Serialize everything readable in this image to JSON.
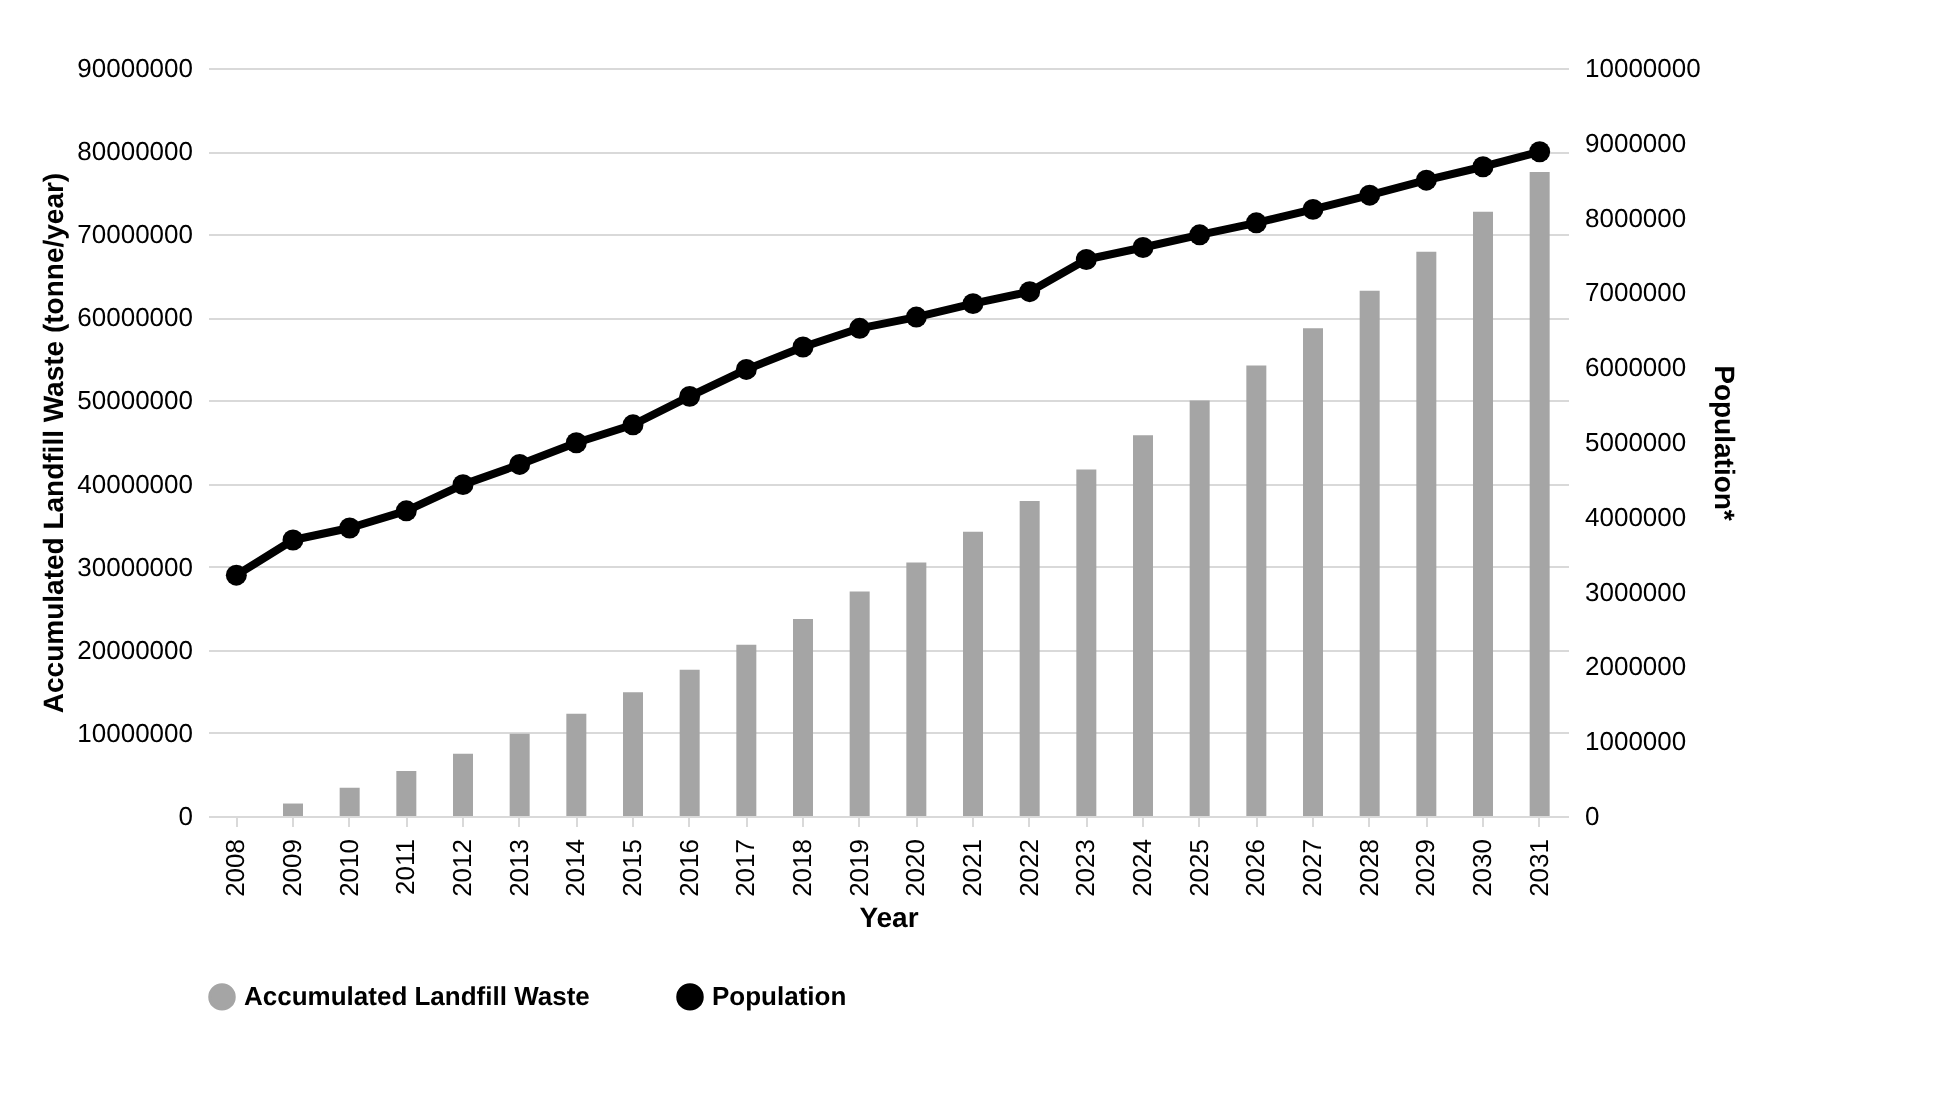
{
  "chart_data": {
    "type": "bar",
    "xlabel": "Year",
    "ylabel": "Accumulated Landfill Waste (tonne/year)",
    "y2label": "Population*",
    "categories": [
      "2008",
      "2009",
      "2010",
      "2011",
      "2012",
      "2013",
      "2014",
      "2015",
      "2016",
      "2017",
      "2018",
      "2019",
      "2020",
      "2021",
      "2022",
      "2023",
      "2024",
      "2025",
      "2026",
      "2027",
      "2028",
      "2029",
      "2030",
      "2031"
    ],
    "series": [
      {
        "name": "Accumulated Landfill Waste",
        "color": "#a5a5a5",
        "values": [
          0,
          1500000,
          3400000,
          5400000,
          7500000,
          9900000,
          12300000,
          14900000,
          17600000,
          20600000,
          23700000,
          27000000,
          30500000,
          34200000,
          37900000,
          41700000,
          45800000,
          50000000,
          54200000,
          58700000,
          63200000,
          67900000,
          72700000,
          77500000
        ]
      },
      {
        "name": "Population",
        "type": "line",
        "axis": "y2",
        "color": "#000000",
        "values": [
          3220000,
          3690000,
          3850000,
          4080000,
          4430000,
          4700000,
          4990000,
          5230000,
          5610000,
          5970000,
          6270000,
          6520000,
          6670000,
          6850000,
          7010000,
          7440000,
          7600000,
          7770000,
          7930000,
          8110000,
          8300000,
          8500000,
          8680000,
          8880000
        ]
      }
    ],
    "ylim": [
      0,
      90000000
    ],
    "yticks": [
      0,
      10000000,
      20000000,
      30000000,
      40000000,
      50000000,
      60000000,
      70000000,
      80000000,
      90000000
    ],
    "y2lim": [
      0,
      10000000
    ],
    "y2ticks": [
      0,
      1000000,
      2000000,
      3000000,
      4000000,
      5000000,
      6000000,
      7000000,
      8000000,
      9000000,
      10000000
    ],
    "grid": "y",
    "legend": "bottom",
    "marker": "circle"
  }
}
